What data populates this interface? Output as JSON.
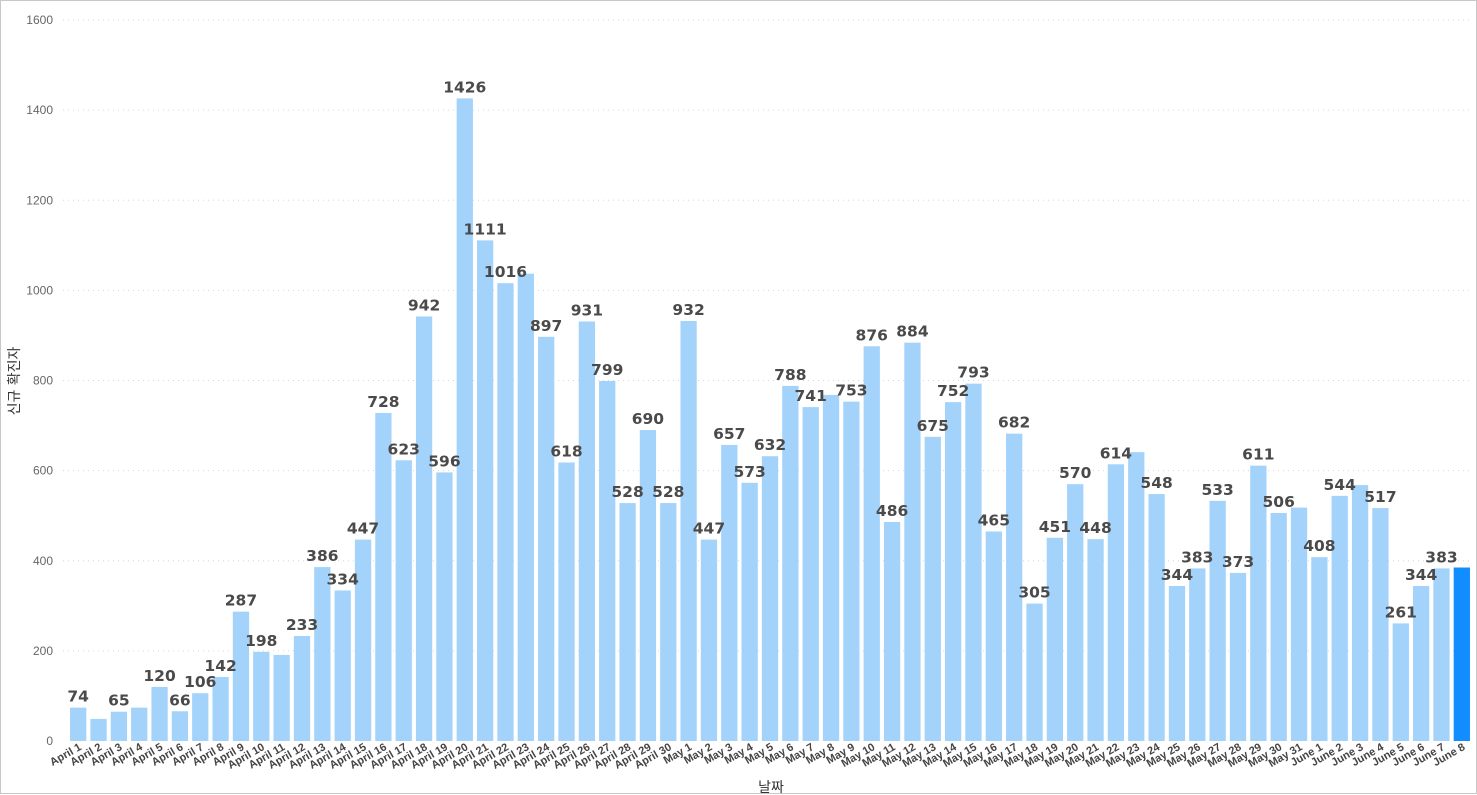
{
  "chart_data": {
    "type": "bar",
    "xlabel": "날짜",
    "ylabel": "신규 확진자",
    "ylim": [
      0,
      1600
    ],
    "yticks": [
      0,
      200,
      400,
      600,
      800,
      1000,
      1200,
      1400,
      1600
    ],
    "grid": true,
    "colors": {
      "bar": "#a3d3fb",
      "highlight": "#118dff",
      "label": "#4a4a4a"
    },
    "categories": [
      "April 1",
      "April 2",
      "April 3",
      "April 4",
      "April 5",
      "April 6",
      "April 7",
      "April 8",
      "April 9",
      "April 10",
      "April 11",
      "April 12",
      "April 13",
      "April 14",
      "April 15",
      "April 16",
      "April 17",
      "April 18",
      "April 19",
      "April 20",
      "April 21",
      "April 22",
      "April 23",
      "April 24",
      "April 25",
      "April 26",
      "April 27",
      "April 28",
      "April 29",
      "April 30",
      "May 1",
      "May 2",
      "May 3",
      "May 4",
      "May 5",
      "May 6",
      "May 7",
      "May 8",
      "May 9",
      "May 10",
      "May 11",
      "May 12",
      "May 13",
      "May 14",
      "May 15",
      "May 16",
      "May 17",
      "May 18",
      "May 19",
      "May 20",
      "May 21",
      "May 22",
      "May 23",
      "May 24",
      "May 25",
      "May 26",
      "May 27",
      "May 28",
      "May 29",
      "May 30",
      "May 31",
      "June 1",
      "June 2",
      "June 3",
      "June 4",
      "June 5",
      "June 6",
      "June 7",
      "June 8"
    ],
    "values": [
      74,
      49,
      65,
      74,
      120,
      66,
      106,
      142,
      287,
      198,
      191,
      233,
      386,
      334,
      447,
      728,
      623,
      942,
      596,
      1426,
      1111,
      1016,
      1037,
      897,
      618,
      931,
      799,
      528,
      690,
      528,
      932,
      447,
      657,
      573,
      632,
      788,
      741,
      768,
      753,
      876,
      486,
      884,
      675,
      752,
      793,
      465,
      682,
      305,
      451,
      570,
      448,
      614,
      641,
      548,
      344,
      383,
      533,
      373,
      611,
      506,
      518,
      408,
      544,
      568,
      517,
      261,
      344,
      383,
      385
    ],
    "data_labels": [
      "74",
      "",
      "65",
      "",
      "120",
      "66",
      "106",
      "142",
      "287",
      "198",
      "",
      "233",
      "386",
      "334",
      "447",
      "728",
      "623",
      "942",
      "596",
      "1426",
      "1111",
      "1016",
      "",
      "897",
      "618",
      "931",
      "799",
      "528",
      "690",
      "528",
      "932",
      "447",
      "657",
      "573",
      "632",
      "788",
      "741",
      "",
      "753",
      "876",
      "486",
      "884",
      "675",
      "752",
      "793",
      "465",
      "682",
      "305",
      "451",
      "570",
      "448",
      "614",
      "",
      "548",
      "344",
      "383",
      "533",
      "373",
      "611",
      "506",
      "",
      "408",
      "544",
      "",
      "517",
      "261",
      "344",
      "383",
      ""
    ],
    "highlight_index": 68
  }
}
